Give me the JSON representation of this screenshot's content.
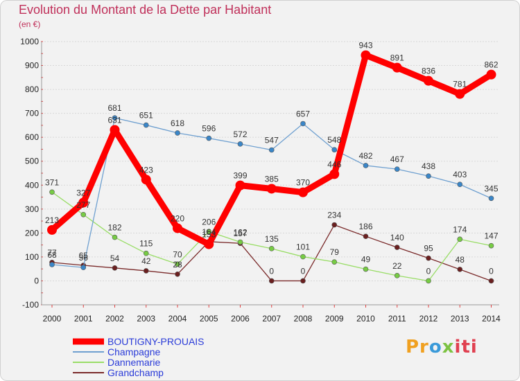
{
  "page": {
    "title": "Evolution du Montant de la Dette par Habitant",
    "subtitle": "(en €)",
    "brand": "Proxiti"
  },
  "chart_data": {
    "type": "line",
    "title": "Evolution du Montant de la Dette par Habitant",
    "ylabel": "(en €)",
    "xlabel": "",
    "categories": [
      "2000",
      "2001",
      "2002",
      "2003",
      "2004",
      "2005",
      "2006",
      "2007",
      "2008",
      "2009",
      "2010",
      "2011",
      "2012",
      "2013",
      "2014"
    ],
    "ylim": [
      -100,
      1000
    ],
    "yticks": [
      "-100",
      "0",
      "100",
      "200",
      "300",
      "400",
      "500",
      "600",
      "700",
      "800",
      "900",
      "1000"
    ],
    "legend_position": "bottom-left",
    "series": [
      {
        "name": "BOUTIGNY-PROUAIS",
        "color": "#ff0000",
        "point_color": "#ff0000",
        "label_color": "#333333",
        "values": [
          213,
          327,
          631,
          423,
          220,
          153,
          399,
          385,
          370,
          446,
          943,
          891,
          836,
          781,
          862
        ],
        "labels": [
          "213",
          "327",
          "631",
          "423",
          "220",
          "153",
          "399",
          "385",
          "370",
          "446",
          "943",
          "891",
          "836",
          "781",
          "862"
        ]
      },
      {
        "name": "Champagne",
        "color": "#6fa0d0",
        "point_color": "#3a86c8",
        "label_color": "#333333",
        "values": [
          68,
          56,
          681,
          651,
          618,
          596,
          572,
          547,
          657,
          548,
          482,
          467,
          438,
          403,
          345
        ],
        "labels": [
          "68",
          "56",
          "681",
          "651",
          "618",
          "596",
          "572",
          "547",
          "657",
          "548",
          "482",
          "467",
          "438",
          "403",
          "345"
        ]
      },
      {
        "name": "Dannemarie",
        "color": "#99dd66",
        "point_color": "#77cc44",
        "label_color": "#333333",
        "values": [
          371,
          277,
          182,
          115,
          70,
          206,
          162,
          135,
          101,
          79,
          49,
          22,
          0,
          174,
          147
        ],
        "labels": [
          "371",
          "277",
          "182",
          "115",
          "70",
          "206",
          "162",
          "135",
          "101",
          "79",
          "49",
          "22",
          "0",
          "174",
          "147"
        ]
      },
      {
        "name": "Grandchamp",
        "color": "#7a2a2a",
        "point_color": "#6a1f1f",
        "label_color": "#333333",
        "values": [
          77,
          65,
          54,
          42,
          28,
          164,
          157,
          0,
          0,
          234,
          186,
          140,
          95,
          48,
          0
        ],
        "labels": [
          "77",
          "65",
          "54",
          "42",
          "28",
          "164",
          "157",
          "0",
          "0",
          "234",
          "186",
          "140",
          "95",
          "48",
          "0"
        ]
      }
    ]
  }
}
